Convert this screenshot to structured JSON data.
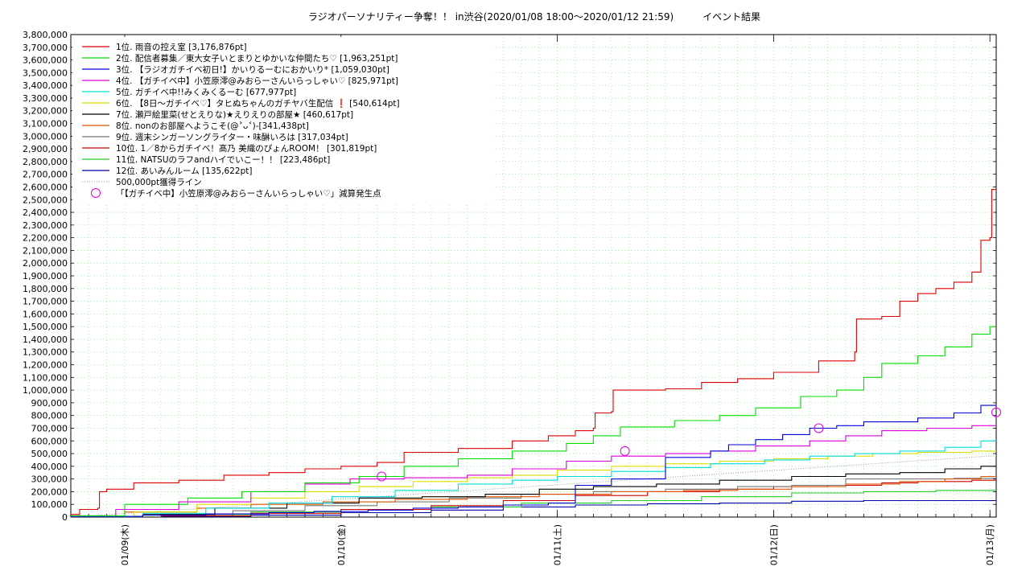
{
  "chart_data": {
    "type": "line",
    "title": "ラジオパーソナリティー争奪！！ in渋谷(2020/01/08 18:00〜2020/01/12 21:59)　　　イベント結果",
    "xlabel": "",
    "ylabel": "",
    "x_tick_labels": [
      "01/09(木)",
      "01/10(金)",
      "01/11(土)",
      "01/12(日)",
      "01/13(月)"
    ],
    "x_unit": "hours since 01/08 18:00",
    "xlim": [
      0,
      102.1
    ],
    "ylim": [
      0,
      3800000
    ],
    "y_tick_values": [
      0,
      100000,
      200000,
      300000,
      400000,
      500000,
      600000,
      700000,
      800000,
      900000,
      1000000,
      1100000,
      1200000,
      1300000,
      1400000,
      1500000,
      1600000,
      1700000,
      1800000,
      1900000,
      2000000,
      2100000,
      2200000,
      2300000,
      2400000,
      2500000,
      2600000,
      2700000,
      2800000,
      2900000,
      3000000,
      3100000,
      3200000,
      3300000,
      3400000,
      3500000,
      3600000,
      3700000,
      3800000
    ],
    "y_tick_labels": [
      "0",
      "100,000",
      "200,000",
      "300,000",
      "400,000",
      "500,000",
      "600,000",
      "700,000",
      "800,000",
      "900,000",
      "1,000,000",
      "1,100,000",
      "1,200,000",
      "1,300,000",
      "1,400,000",
      "1,500,000",
      "1,600,000",
      "1,700,000",
      "1,800,000",
      "1,900,000",
      "2,000,000",
      "2,100,000",
      "2,200,000",
      "2,300,000",
      "2,400,000",
      "2,500,000",
      "2,600,000",
      "2,700,000",
      "2,800,000",
      "2,900,000",
      "3,000,000",
      "3,100,000",
      "3,200,000",
      "3,300,000",
      "3,400,000",
      "3,500,000",
      "3,600,000",
      "3,700,000",
      "3,800,000"
    ],
    "grid": true,
    "legend_position": "top-left",
    "series": [
      {
        "name": "1位. 雨音の控え室 [3,176,876pt]",
        "color": "#dd0000",
        "points": [
          [
            0,
            20000
          ],
          [
            1,
            60000
          ],
          [
            3,
            70000
          ],
          [
            3.2,
            200000
          ],
          [
            4,
            220000
          ],
          [
            7,
            270000
          ],
          [
            12,
            290000
          ],
          [
            17,
            330000
          ],
          [
            22,
            350000
          ],
          [
            26,
            380000
          ],
          [
            30,
            400000
          ],
          [
            34,
            430000
          ],
          [
            37,
            510000
          ],
          [
            43,
            540000
          ],
          [
            49,
            600000
          ],
          [
            53,
            640000
          ],
          [
            56,
            680000
          ],
          [
            58,
            700000
          ],
          [
            58.2,
            820000
          ],
          [
            60,
            830000
          ],
          [
            60.2,
            1000000
          ],
          [
            66,
            1010000
          ],
          [
            70,
            1060000
          ],
          [
            74,
            1090000
          ],
          [
            78,
            1140000
          ],
          [
            83,
            1230000
          ],
          [
            87,
            1300000
          ],
          [
            87.2,
            1560000
          ],
          [
            90,
            1580000
          ],
          [
            92,
            1700000
          ],
          [
            94,
            1760000
          ],
          [
            96,
            1800000
          ],
          [
            98,
            1850000
          ],
          [
            100,
            1930000
          ],
          [
            101,
            2180000
          ],
          [
            102,
            2200000
          ],
          [
            102.2,
            2580000
          ],
          [
            104,
            2580000
          ],
          [
            104.4,
            2700000
          ],
          [
            104.6,
            3170000
          ],
          [
            106,
            3176876
          ]
        ]
      },
      {
        "name": "2位. 配信者募集／東大女子いとまりとゆかいな仲間たち♡ [1,963,251pt]",
        "color": "#00dd00",
        "points": [
          [
            0,
            10000
          ],
          [
            6,
            100000
          ],
          [
            13,
            150000
          ],
          [
            19,
            200000
          ],
          [
            26,
            270000
          ],
          [
            32,
            320000
          ],
          [
            37,
            400000
          ],
          [
            43,
            460000
          ],
          [
            49,
            520000
          ],
          [
            55,
            580000
          ],
          [
            58,
            640000
          ],
          [
            61,
            710000
          ],
          [
            67,
            760000
          ],
          [
            72,
            800000
          ],
          [
            76,
            860000
          ],
          [
            81,
            950000
          ],
          [
            85,
            1000000
          ],
          [
            88,
            1100000
          ],
          [
            90,
            1210000
          ],
          [
            94,
            1270000
          ],
          [
            97,
            1340000
          ],
          [
            100,
            1440000
          ],
          [
            102,
            1500000
          ],
          [
            103,
            1590000
          ],
          [
            104,
            1690000
          ],
          [
            105,
            1800000
          ],
          [
            106,
            1963251
          ]
        ]
      },
      {
        "name": "3位. 【ラジオガチイベ初日!】かいりるーむにおかいり* [1,059,030pt]",
        "color": "#0000dd",
        "points": [
          [
            0,
            5000
          ],
          [
            8,
            15000
          ],
          [
            15,
            25000
          ],
          [
            22,
            35000
          ],
          [
            27,
            45000
          ],
          [
            33,
            55000
          ],
          [
            38,
            70000
          ],
          [
            43,
            80000
          ],
          [
            48,
            95000
          ],
          [
            53,
            110000
          ],
          [
            56,
            250000
          ],
          [
            60,
            300000
          ],
          [
            66,
            470000
          ],
          [
            71,
            520000
          ],
          [
            73,
            570000
          ],
          [
            76,
            610000
          ],
          [
            79,
            650000
          ],
          [
            82,
            700000
          ],
          [
            85,
            720000
          ],
          [
            88,
            750000
          ],
          [
            94,
            780000
          ],
          [
            98,
            820000
          ],
          [
            101,
            880000
          ],
          [
            104,
            930000
          ],
          [
            106,
            1059030
          ]
        ]
      },
      {
        "name": "4位. 【ガチイベ中】小笠原澪@みおらーさんいらっしゃい♡ [825,971pt]",
        "color": "#dd00dd",
        "points": [
          [
            0,
            10000
          ],
          [
            5,
            60000
          ],
          [
            12,
            120000
          ],
          [
            20,
            200000
          ],
          [
            26,
            260000
          ],
          [
            31,
            300000
          ],
          [
            37,
            310000
          ],
          [
            44,
            330000
          ],
          [
            49,
            380000
          ],
          [
            55,
            440000
          ],
          [
            60,
            480000
          ],
          [
            66,
            500000
          ],
          [
            71,
            520000
          ],
          [
            76,
            560000
          ],
          [
            82,
            600000
          ],
          [
            86,
            640000
          ],
          [
            90,
            680000
          ],
          [
            95,
            700000
          ],
          [
            100,
            720000
          ],
          [
            103,
            770000
          ],
          [
            105,
            825971
          ]
        ]
      },
      {
        "name": "5位. ガチイベ中!!みくみくるーむ [677,977pt]",
        "color": "#00dddd",
        "points": [
          [
            0,
            5000
          ],
          [
            8,
            30000
          ],
          [
            15,
            70000
          ],
          [
            22,
            110000
          ],
          [
            29,
            160000
          ],
          [
            36,
            210000
          ],
          [
            43,
            260000
          ],
          [
            49,
            290000
          ],
          [
            54,
            320000
          ],
          [
            60,
            360000
          ],
          [
            66,
            390000
          ],
          [
            71,
            420000
          ],
          [
            77,
            450000
          ],
          [
            82,
            480000
          ],
          [
            87,
            500000
          ],
          [
            92,
            520000
          ],
          [
            97,
            550000
          ],
          [
            101,
            600000
          ],
          [
            104,
            660000
          ],
          [
            106,
            677977
          ]
        ]
      },
      {
        "name": "6位. 【8日〜ガチイベ♡】タヒぬちゃんのガチヤバ生配信 ❗ [540,614pt]",
        "color": "#dddd00",
        "points": [
          [
            0,
            5000
          ],
          [
            7,
            40000
          ],
          [
            14,
            100000
          ],
          [
            20,
            150000
          ],
          [
            26,
            200000
          ],
          [
            32,
            240000
          ],
          [
            38,
            280000
          ],
          [
            44,
            310000
          ],
          [
            49,
            330000
          ],
          [
            54,
            370000
          ],
          [
            60,
            400000
          ],
          [
            66,
            420000
          ],
          [
            72,
            440000
          ],
          [
            78,
            460000
          ],
          [
            84,
            480000
          ],
          [
            89,
            500000
          ],
          [
            94,
            510000
          ],
          [
            100,
            520000
          ],
          [
            106,
            540614
          ]
        ]
      },
      {
        "name": "7位. 瀬戸絵里菜(せとえりな)★えりえりの部屋★ [460,617pt]",
        "color": "#000000",
        "points": [
          [
            0,
            5000
          ],
          [
            8,
            20000
          ],
          [
            16,
            70000
          ],
          [
            24,
            110000
          ],
          [
            32,
            150000
          ],
          [
            39,
            160000
          ],
          [
            46,
            180000
          ],
          [
            52,
            220000
          ],
          [
            58,
            240000
          ],
          [
            65,
            260000
          ],
          [
            72,
            290000
          ],
          [
            80,
            320000
          ],
          [
            86,
            340000
          ],
          [
            92,
            350000
          ],
          [
            97,
            380000
          ],
          [
            101,
            400000
          ],
          [
            104,
            440000
          ],
          [
            106,
            460617
          ]
        ]
      },
      {
        "name": "8位. nonのお部屋へようこそ(@˃ᴗ˂)-[341,438pt]",
        "color": "#dd5500",
        "points": [
          [
            0,
            5000
          ],
          [
            6,
            40000
          ],
          [
            14,
            70000
          ],
          [
            20,
            100000
          ],
          [
            28,
            120000
          ],
          [
            36,
            140000
          ],
          [
            44,
            160000
          ],
          [
            52,
            180000
          ],
          [
            60,
            200000
          ],
          [
            68,
            210000
          ],
          [
            74,
            220000
          ],
          [
            80,
            240000
          ],
          [
            86,
            260000
          ],
          [
            92,
            280000
          ],
          [
            97,
            300000
          ],
          [
            101,
            320000
          ],
          [
            106,
            341438
          ]
        ]
      },
      {
        "name": "9位. 週末シンガーソングライター・味醂いろは [317,034pt]",
        "color": "#777777",
        "points": [
          [
            0,
            3000
          ],
          [
            10,
            20000
          ],
          [
            18,
            50000
          ],
          [
            26,
            90000
          ],
          [
            34,
            120000
          ],
          [
            42,
            150000
          ],
          [
            50,
            180000
          ],
          [
            58,
            200000
          ],
          [
            66,
            220000
          ],
          [
            74,
            240000
          ],
          [
            80,
            250000
          ],
          [
            86,
            300000
          ],
          [
            92,
            300000
          ],
          [
            98,
            305000
          ],
          [
            106,
            317034
          ]
        ]
      },
      {
        "name": "10位. 1／8からガチイベ！髙乃 美織のぴょんROOM！ [301,819pt]",
        "color": "#cc0000",
        "points": [
          [
            0,
            2000
          ],
          [
            10,
            10000
          ],
          [
            20,
            30000
          ],
          [
            30,
            60000
          ],
          [
            40,
            90000
          ],
          [
            48,
            130000
          ],
          [
            56,
            170000
          ],
          [
            64,
            200000
          ],
          [
            72,
            220000
          ],
          [
            78,
            240000
          ],
          [
            84,
            250000
          ],
          [
            90,
            270000
          ],
          [
            94,
            280000
          ],
          [
            100,
            290000
          ],
          [
            106,
            301819
          ]
        ]
      },
      {
        "name": "11位. NATSUのラフandハイでいこー！！ [223,486pt]",
        "color": "#22cc22",
        "points": [
          [
            0,
            2000
          ],
          [
            10,
            20000
          ],
          [
            20,
            40000
          ],
          [
            30,
            60000
          ],
          [
            40,
            80000
          ],
          [
            50,
            110000
          ],
          [
            60,
            130000
          ],
          [
            70,
            160000
          ],
          [
            80,
            190000
          ],
          [
            88,
            200000
          ],
          [
            96,
            210000
          ],
          [
            106,
            223486
          ]
        ]
      },
      {
        "name": "12位. あいみんルーム [135,622pt]",
        "color": "#0000aa",
        "points": [
          [
            0,
            1000
          ],
          [
            10,
            5000
          ],
          [
            20,
            15000
          ],
          [
            30,
            35000
          ],
          [
            40,
            55000
          ],
          [
            48,
            80000
          ],
          [
            56,
            95000
          ],
          [
            64,
            105000
          ],
          [
            72,
            110000
          ],
          [
            80,
            125000
          ],
          [
            88,
            130000
          ],
          [
            106,
            135622
          ]
        ]
      }
    ],
    "threshold_line": {
      "label": "500,000pt獲得ライン",
      "points": [
        [
          0,
          0
        ],
        [
          106,
          500000
        ]
      ],
      "style": "dotted",
      "color": "#999999"
    },
    "decrease_markers": {
      "label": "「【ガチイベ中】小笠原澪@みおらーさんいらっしゃい♡」減算発生点",
      "color": "#dd00dd",
      "points": [
        [
          34.5,
          320000
        ],
        [
          61.5,
          520000
        ],
        [
          83,
          700000
        ],
        [
          104.5,
          825000
        ]
      ]
    }
  }
}
